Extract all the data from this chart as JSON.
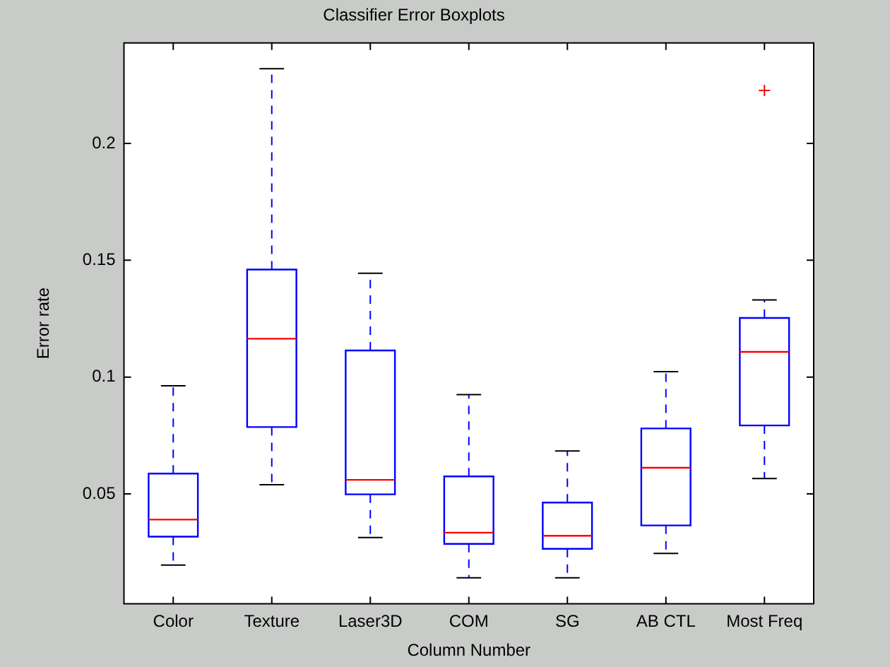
{
  "chart_data": {
    "type": "box",
    "title": "Classifier Error Boxplots",
    "xlabel": "Column Number",
    "ylabel": "Error rate",
    "categories": [
      "Color",
      "Texture",
      "Laser3D",
      "COM",
      "SG",
      "AB CTL",
      "Most Freq"
    ],
    "color": "#0000ff",
    "boxes": [
      {
        "low": 0.0195,
        "q1": 0.0317,
        "median": 0.039,
        "q3": 0.0587,
        "high": 0.0963
      },
      {
        "low": 0.0539,
        "q1": 0.0786,
        "median": 0.1164,
        "q3": 0.146,
        "high": 0.232
      },
      {
        "low": 0.0313,
        "q1": 0.0498,
        "median": 0.056,
        "q3": 0.1114,
        "high": 0.1444
      },
      {
        "low": 0.0141,
        "q1": 0.0286,
        "median": 0.0334,
        "q3": 0.0575,
        "high": 0.0925
      },
      {
        "low": 0.0141,
        "q1": 0.0265,
        "median": 0.0321,
        "q3": 0.0463,
        "high": 0.0684
      },
      {
        "low": 0.0245,
        "q1": 0.0365,
        "median": 0.0612,
        "q3": 0.078,
        "high": 0.1023
      },
      {
        "low": 0.0566,
        "q1": 0.0793,
        "median": 0.1108,
        "q3": 0.1253,
        "high": 0.133,
        "outliers": [
          0.2227
        ]
      }
    ],
    "ylim": [
      0.003,
      0.243
    ],
    "yticks": [
      0.05,
      0.1,
      0.15,
      0.2
    ],
    "grid": false,
    "legend": false,
    "marker": "cross"
  }
}
